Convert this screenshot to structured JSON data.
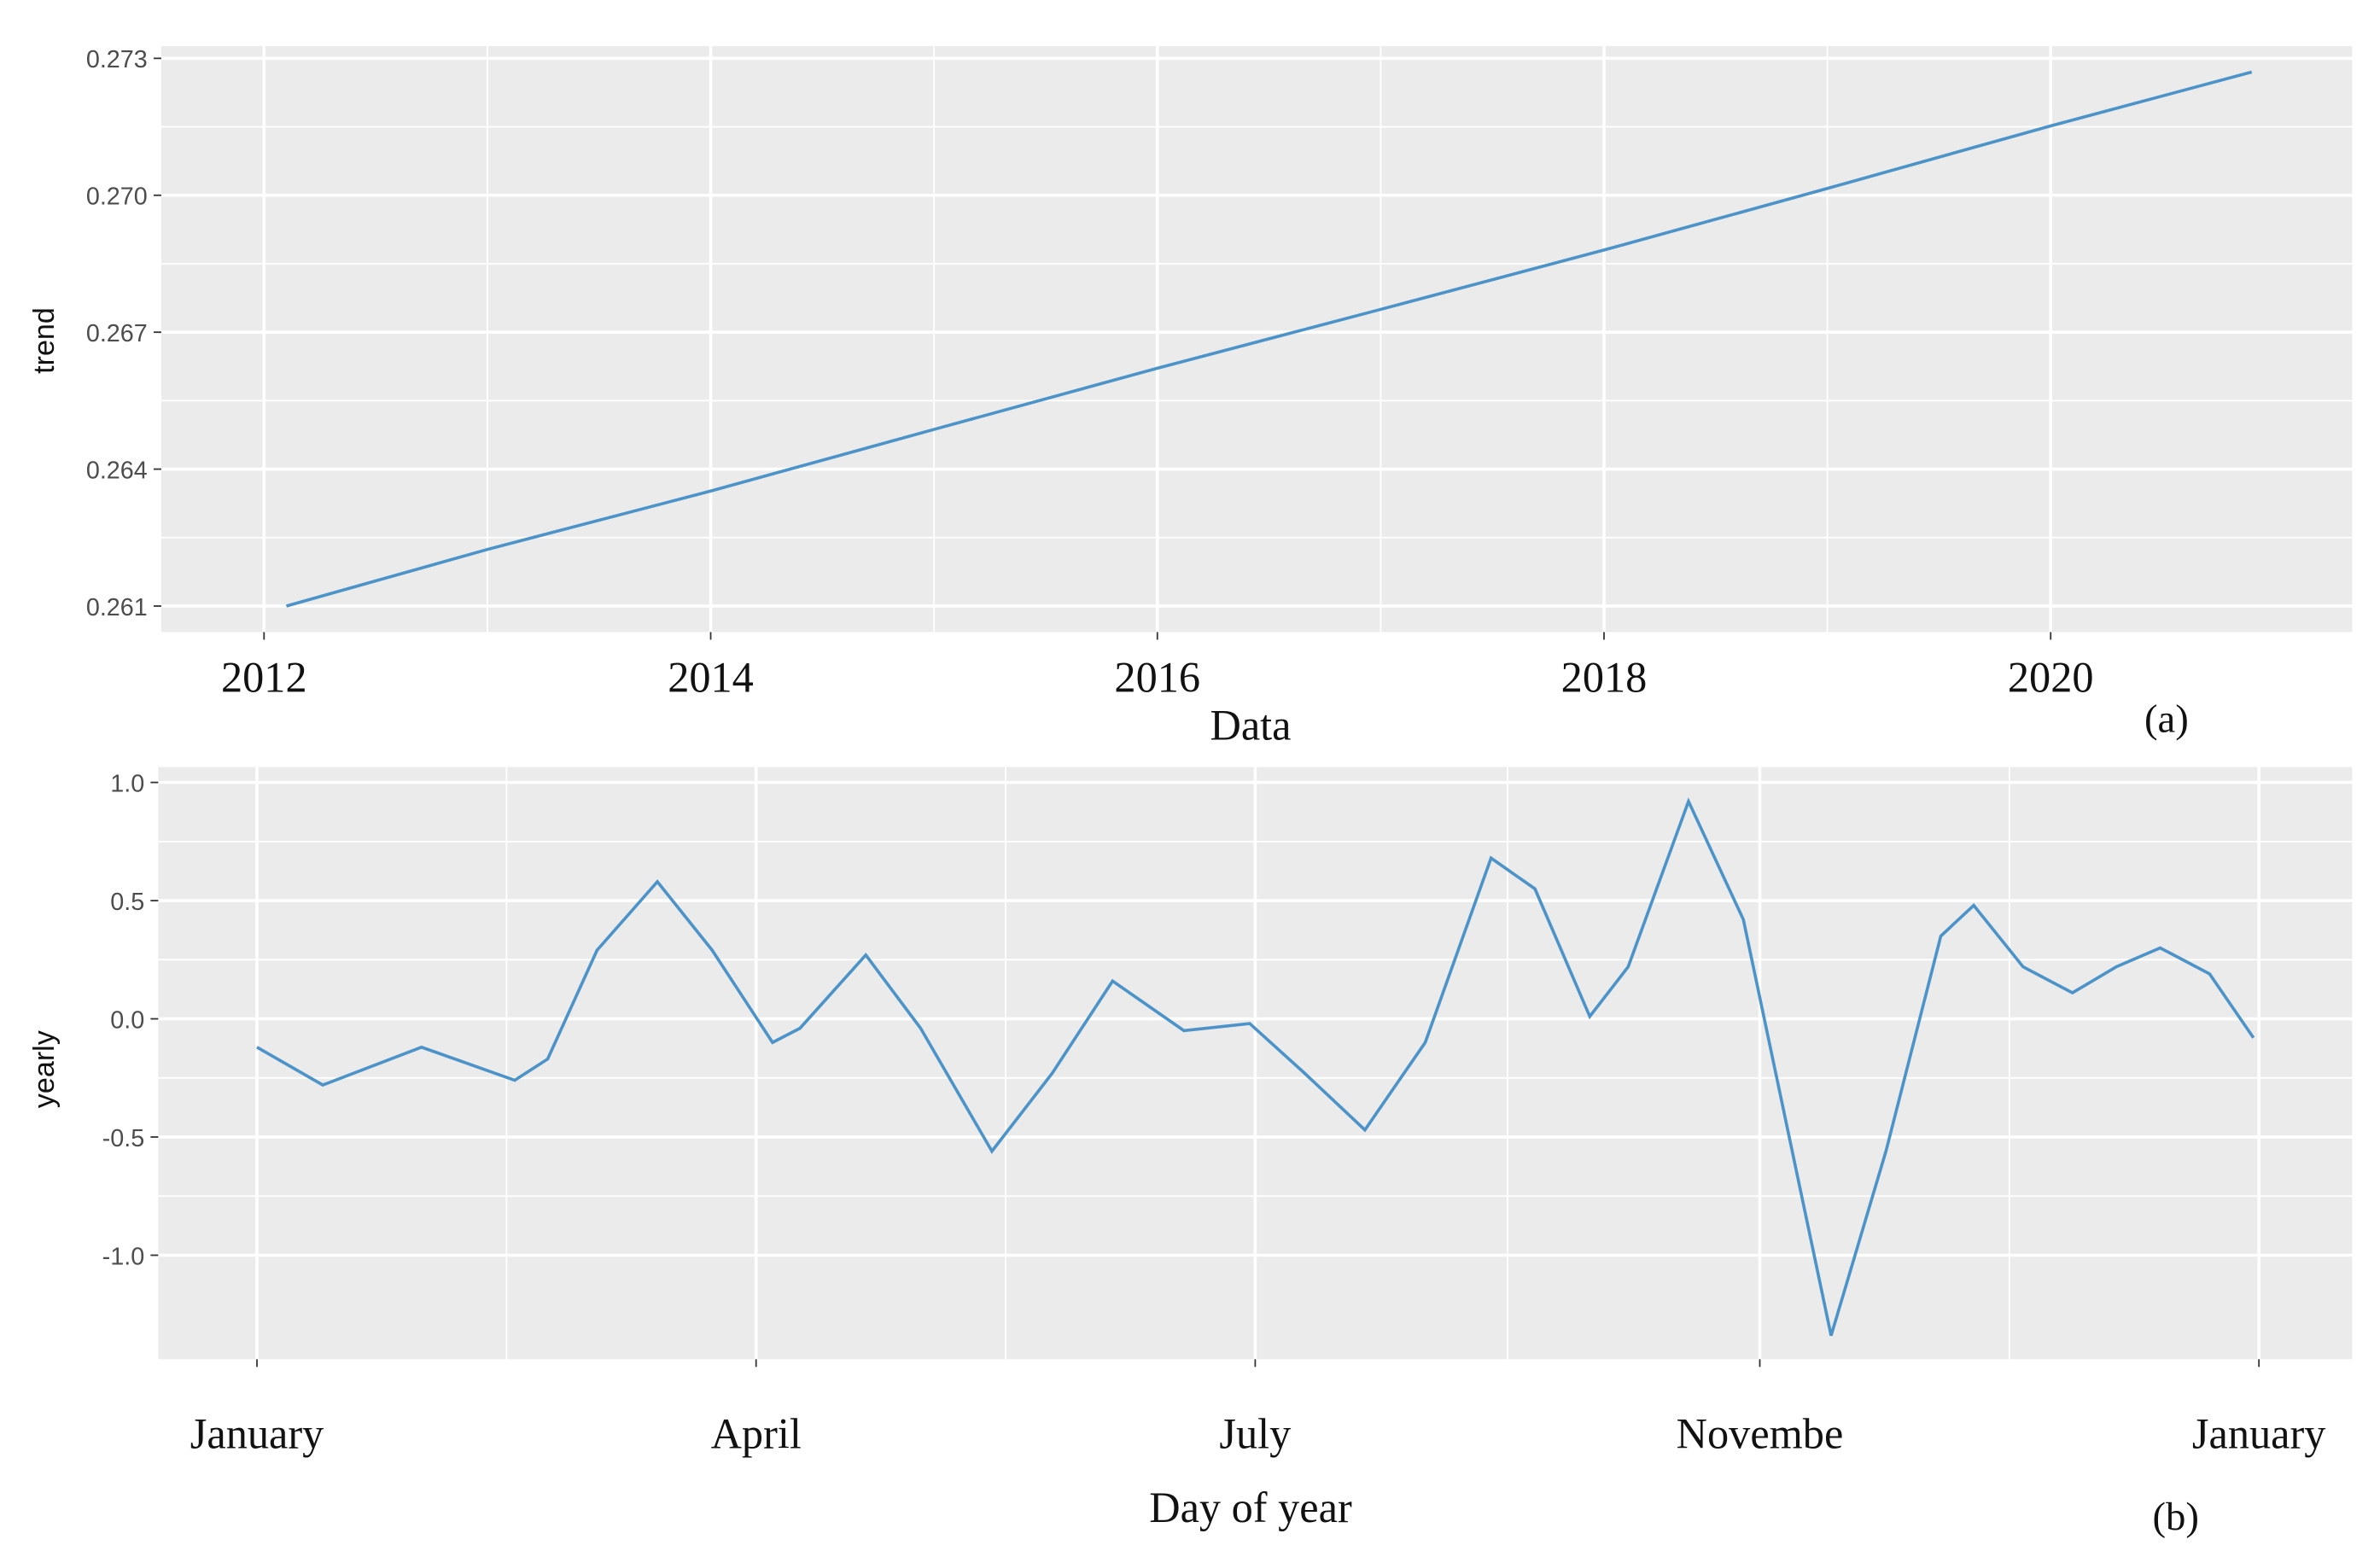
{
  "chart_data": [
    {
      "type": "line",
      "x_label": "Data",
      "y_label": "trend",
      "annotation": "(a)",
      "x": [
        2012.1,
        2013,
        2014,
        2015,
        2016,
        2017,
        2018,
        2019,
        2020,
        2020.9
      ],
      "series": [
        {
          "name": "trend",
          "color": "#4b93c8",
          "values": [
            0.261,
            0.26224,
            0.26352,
            0.26487,
            0.26621,
            0.2675,
            0.2688,
            0.27015,
            0.27152,
            0.2727
          ]
        }
      ],
      "xlim": [
        2011.54,
        2021.35
      ],
      "xticks": [
        2012,
        2014,
        2016,
        2018,
        2020
      ],
      "ylim": [
        0.26043,
        0.27327
      ],
      "yticks": [
        0.261,
        0.264,
        0.267,
        {
          "value": 0.27,
          "label": "0.270"
        },
        0.273
      ],
      "grid": true
    },
    {
      "type": "line",
      "x_label": "Day of year",
      "y_label": "yearly",
      "annotation": "(b)",
      "x": [
        0,
        12,
        30,
        47,
        53,
        62,
        73,
        83,
        94,
        99,
        111,
        121,
        134,
        145,
        156,
        169,
        181,
        191,
        202,
        213,
        225,
        233,
        243,
        250,
        261,
        271,
        287,
        297,
        307,
        313,
        322,
        331,
        339,
        347,
        356,
        364
      ],
      "series": [
        {
          "name": "yearly",
          "color": "#4b93c8",
          "values": [
            -0.12,
            -0.28,
            -0.12,
            -0.26,
            -0.17,
            0.29,
            0.58,
            0.29,
            -0.1,
            -0.04,
            0.27,
            -0.04,
            -0.56,
            -0.23,
            0.16,
            -0.05,
            -0.02,
            -0.23,
            -0.47,
            -0.1,
            0.68,
            0.55,
            0.01,
            0.22,
            0.92,
            0.42,
            -1.34,
            -0.56,
            0.35,
            0.48,
            0.22,
            0.11,
            0.22,
            0.3,
            0.19,
            -0.08
          ]
        }
      ],
      "xlim": [
        -18,
        382
      ],
      "xticks": [
        {
          "value": 0,
          "label": "January"
        },
        {
          "value": 91,
          "label": "April"
        },
        {
          "value": 182,
          "label": "July"
        },
        {
          "value": 274,
          "label": "Novembe"
        },
        {
          "value": 365,
          "label": "January"
        }
      ],
      "ylim": [
        -1.44,
        1.065
      ],
      "yticks": [
        {
          "value": -1,
          "label": "-1.0"
        },
        -0.5,
        {
          "value": 0,
          "label": "0.0"
        },
        0.5,
        {
          "value": 1,
          "label": "1.0"
        }
      ],
      "grid": true
    }
  ]
}
